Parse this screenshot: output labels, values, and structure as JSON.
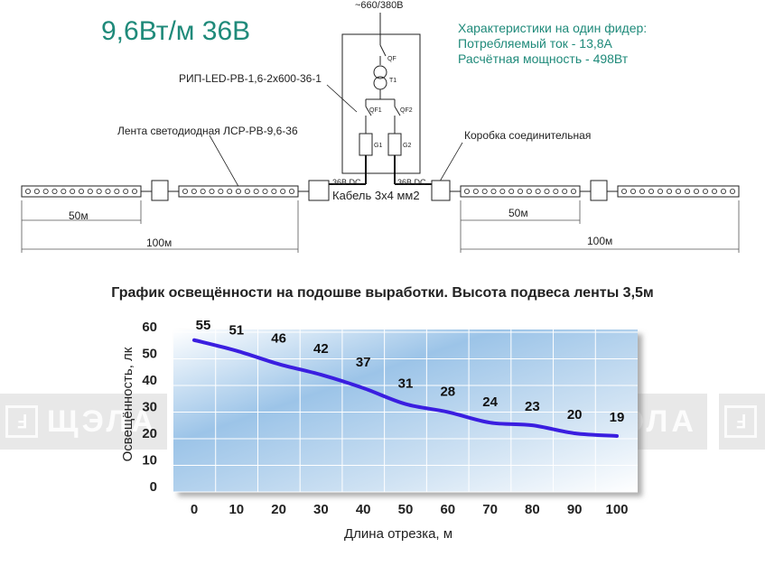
{
  "header": {
    "power_title": "9,6Вт/м 36В",
    "supply_label": "~660/380В",
    "specs": {
      "heading": "Характеристики на один фидер:",
      "current": "Потребляемый ток - 13,8А",
      "power": "Расчётная мощность - 498Вт"
    }
  },
  "scheme": {
    "rip_label": "РИП-LED-РВ-1,6-2х600-36-1",
    "strip_label": "Лента светодиодная ЛСР-РВ-9,6-36",
    "box_label": "Коробка соединительная",
    "cable_label": "Кабель 3х4 мм2",
    "dc_left": "36В DC",
    "dc_right": "36В DC",
    "qf": "QF",
    "t1": "T1",
    "qf1": "QF1",
    "qf2": "QF2",
    "g1": "G1",
    "g2": "G2",
    "dim_50_left": "50м",
    "dim_100_left": "100м",
    "dim_50_right": "50м",
    "dim_100_right": "100м"
  },
  "watermark": {
    "text": "ЩЭЛА"
  },
  "chart_data": {
    "type": "line",
    "title": "График освещённости на подошве выработки. Высота подвеса ленты 3,5м",
    "xlabel": "Длина отрезка, м",
    "ylabel": "Освещённость, лк",
    "x": [
      0,
      10,
      20,
      30,
      40,
      50,
      60,
      70,
      80,
      90,
      100
    ],
    "y": [
      55,
      51,
      46,
      42,
      37,
      31,
      28,
      24,
      23,
      20,
      19
    ],
    "data_labels": [
      "55",
      "51",
      "46",
      "42",
      "37",
      "31",
      "28",
      "24",
      "23",
      "20",
      "19"
    ],
    "x_ticks": [
      "0",
      "10",
      "20",
      "30",
      "40",
      "50",
      "60",
      "70",
      "80",
      "90",
      "100"
    ],
    "y_ticks": [
      "0",
      "10",
      "20",
      "30",
      "40",
      "50",
      "60"
    ],
    "xlim": [
      0,
      100
    ],
    "ylim": [
      0,
      60
    ],
    "grid": true,
    "line_color": "#3a1ee0"
  }
}
